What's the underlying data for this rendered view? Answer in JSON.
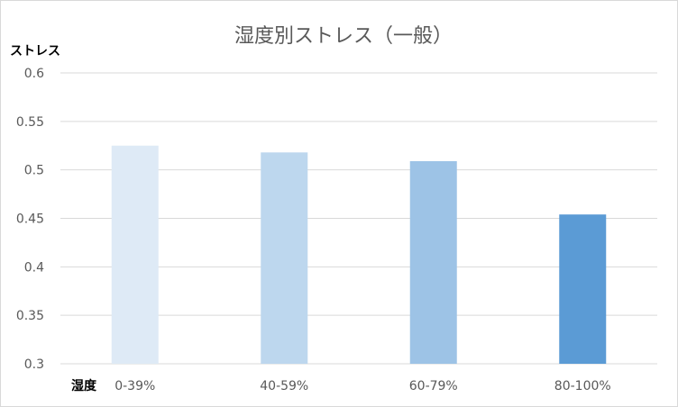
{
  "chart_data": {
    "type": "bar",
    "title": "湿度別ストレス（一般）",
    "ylabel": "ストレス",
    "xlabel": "湿度",
    "categories": [
      "0-39%",
      "40-59%",
      "60-79%",
      "80-100%"
    ],
    "values": [
      0.525,
      0.518,
      0.509,
      0.454
    ],
    "ylim": [
      0.3,
      0.6
    ],
    "yticks": [
      "0.3",
      "0.35",
      "0.4",
      "0.45",
      "0.5",
      "0.55",
      "0.6"
    ],
    "grid": true,
    "legend": "none",
    "colors": [
      "#deeaf6",
      "#bdd7ee",
      "#9dc3e6",
      "#5b9bd5"
    ]
  }
}
